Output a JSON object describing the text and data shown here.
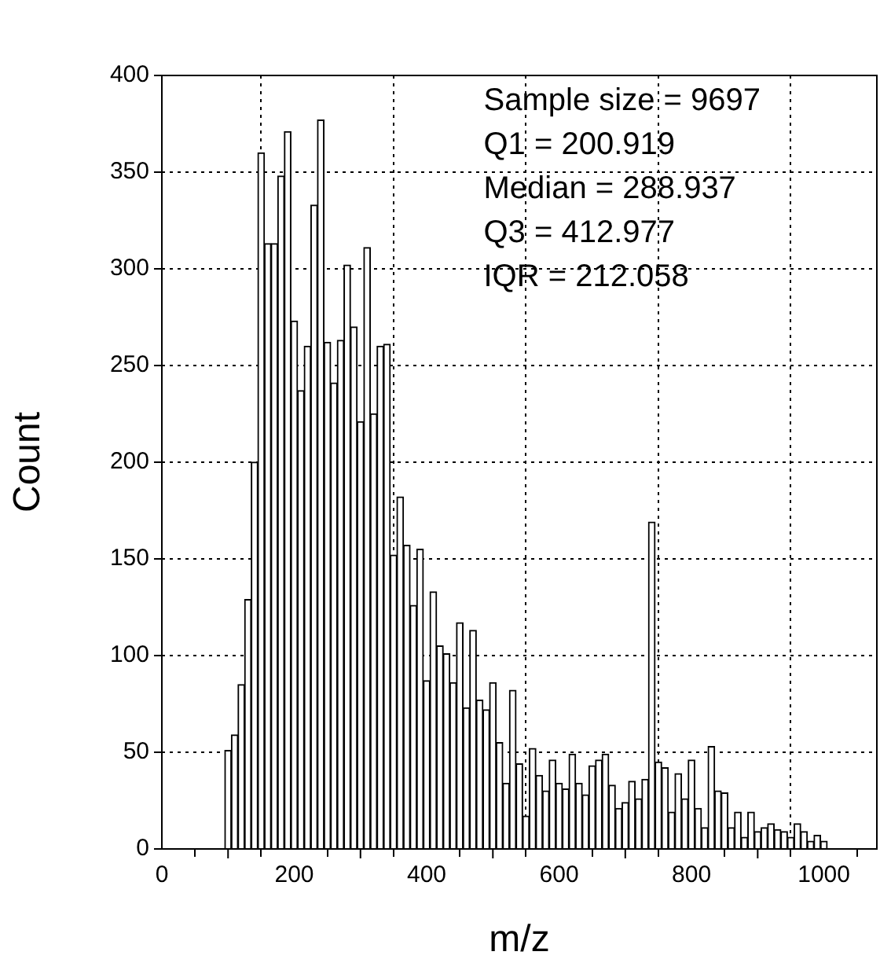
{
  "chart_data": {
    "type": "histogram",
    "xlabel": "m/z",
    "ylabel": "Count",
    "bins": [
      95,
      105,
      115,
      125,
      135,
      145,
      155,
      165,
      175,
      185,
      195,
      205,
      215,
      225,
      235,
      245,
      255,
      265,
      275,
      285,
      295,
      305,
      315,
      325,
      335,
      345,
      355,
      365,
      375,
      385,
      395,
      405,
      415,
      425,
      435,
      445,
      455,
      465,
      475,
      485,
      495,
      505,
      515,
      525,
      535,
      545,
      555,
      565,
      575,
      585,
      595,
      605,
      615,
      625,
      635,
      645,
      655,
      665,
      675,
      685,
      695,
      705,
      715,
      725,
      735,
      745,
      755,
      765,
      775,
      785,
      795,
      805,
      815,
      825,
      835,
      845,
      855,
      865,
      875,
      885,
      895,
      905,
      915,
      925,
      935,
      945,
      955,
      965,
      975,
      985,
      995,
      1005
    ],
    "values": [
      51,
      59,
      85,
      129,
      200,
      360,
      313,
      313,
      348,
      371,
      273,
      237,
      260,
      333,
      377,
      262,
      241,
      263,
      302,
      270,
      221,
      311,
      225,
      260,
      261,
      152,
      182,
      157,
      126,
      155,
      87,
      133,
      105,
      101,
      86,
      117,
      73,
      113,
      77,
      72,
      86,
      55,
      34,
      82,
      44,
      17,
      52,
      38,
      30,
      46,
      34,
      31,
      49,
      34,
      28,
      43,
      46,
      49,
      33,
      21,
      24,
      35,
      26,
      36,
      169,
      45,
      42,
      19,
      39,
      26,
      46,
      21,
      11,
      53,
      30,
      29,
      11,
      19,
      6,
      19,
      9,
      11,
      13,
      10,
      9,
      6,
      13,
      9,
      4,
      7,
      4
    ],
    "color": "#ffffff",
    "xlim": [
      0,
      1080
    ],
    "ylim": [
      0,
      400
    ],
    "xticks": [
      0,
      {
        "value": 100,
        "label": null
      },
      200,
      {
        "value": 300,
        "label": null
      },
      400,
      {
        "value": 500,
        "label": null
      },
      600,
      {
        "value": 700,
        "label": null
      },
      800,
      {
        "value": 900,
        "label": null
      },
      1000
    ],
    "yticks": [
      0,
      50,
      100,
      150,
      200,
      250,
      300,
      350,
      400
    ],
    "grid": true,
    "legend": false,
    "annotations": [
      "Sample size = 9697",
      "Q1 = 200.919",
      "Median = 288.937",
      "Q3 = 412.977",
      "IQR = 212.058"
    ]
  }
}
